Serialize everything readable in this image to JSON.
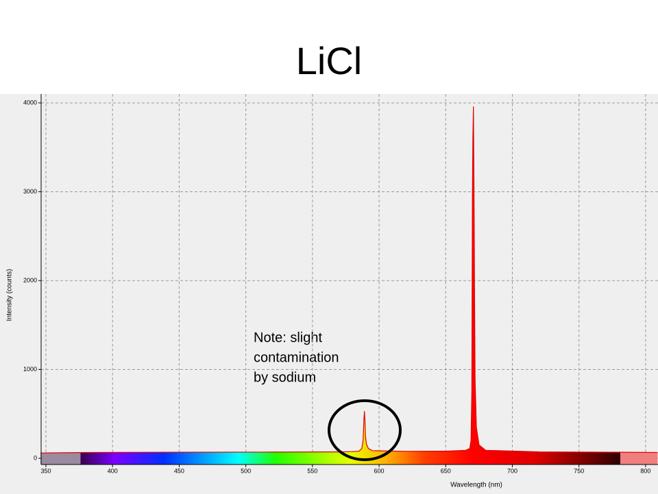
{
  "chart_data": {
    "type": "area",
    "title": "LiCl",
    "x_label": "Wavelength (nm)",
    "y_label": "Intensity (counts)",
    "annotation": [
      "Note: slight",
      "contamination",
      "by sodium"
    ],
    "x": [
      346,
      380,
      450,
      520,
      570,
      580,
      585,
      587,
      588,
      588.6,
      589,
      589.4,
      589.8,
      590.5,
      592,
      595,
      620,
      650,
      665,
      668,
      669,
      669.6,
      670,
      670.4,
      670.8,
      671.2,
      671.6,
      672,
      673,
      675,
      680,
      720,
      780,
      809
    ],
    "series": [
      {
        "name": "Intensity",
        "color": "#e00000",
        "values": [
          60,
          65,
          68,
          70,
          72,
          75,
          80,
          110,
          200,
          430,
          530,
          420,
          250,
          160,
          110,
          85,
          78,
          80,
          90,
          110,
          200,
          750,
          2900,
          3600,
          3960,
          3100,
          1900,
          900,
          350,
          150,
          90,
          72,
          68,
          65
        ]
      }
    ],
    "xlim": [
      346.4,
      809.3
    ],
    "xticks": [
      350,
      400,
      450,
      500,
      550,
      600,
      650,
      700,
      750,
      800
    ],
    "ylim": [
      -70,
      4100
    ],
    "yticks": [
      0,
      1000,
      2000,
      3000,
      4000
    ],
    "grid": true
  }
}
